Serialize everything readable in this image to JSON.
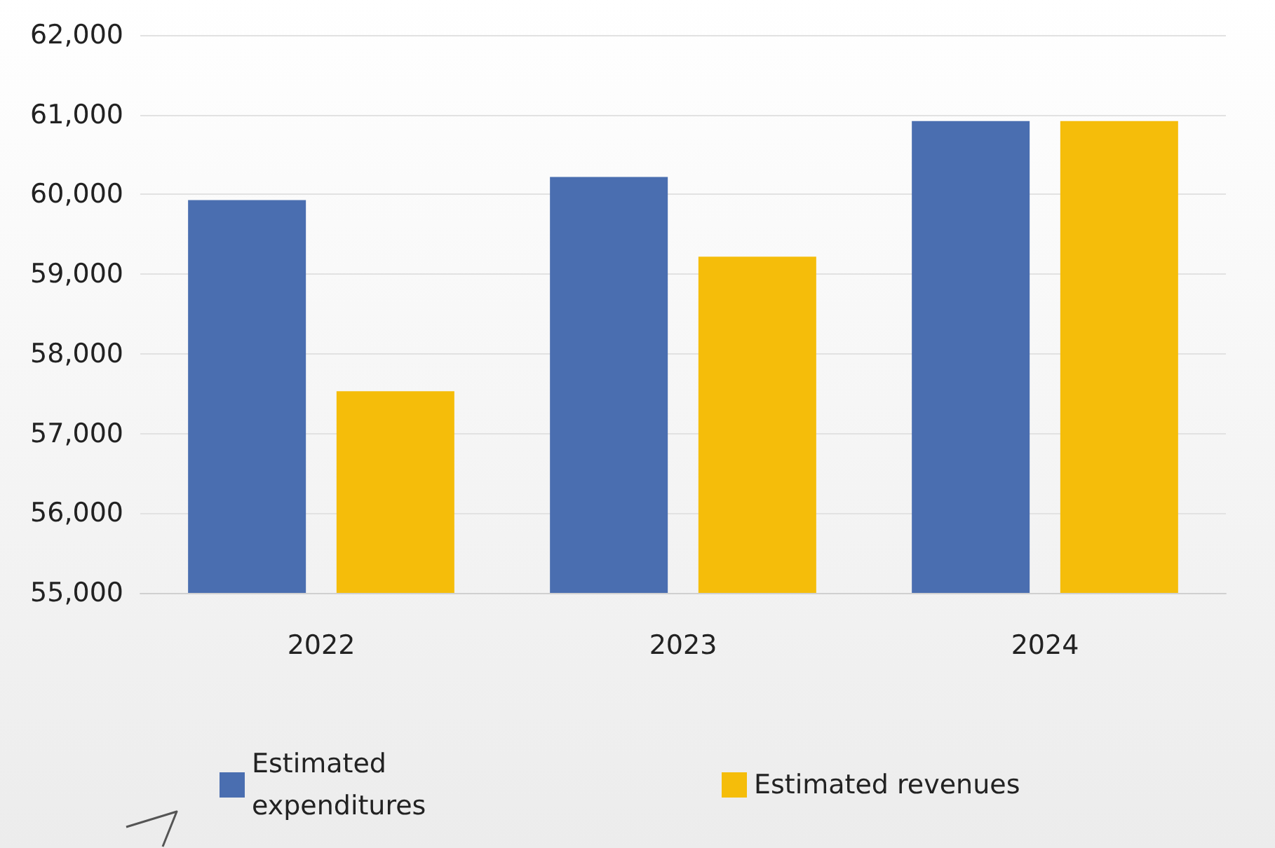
{
  "chart_data": {
    "type": "bar",
    "categories": [
      "2022",
      "2023",
      "2024"
    ],
    "series": [
      {
        "name": "Estimated expenditures",
        "color": "#4a6eb0",
        "values": [
          59930,
          60220,
          60920
        ]
      },
      {
        "name": "Estimated revenues",
        "color": "#f5bd0a",
        "values": [
          57530,
          59220,
          60920
        ]
      }
    ],
    "ylim": [
      55000,
      62000
    ],
    "yticks": [
      {
        "value": 55000,
        "label": "55,000"
      },
      {
        "value": 56000,
        "label": "56,000"
      },
      {
        "value": 57000,
        "label": "57,000"
      },
      {
        "value": 58000,
        "label": "58,000"
      },
      {
        "value": 59000,
        "label": "59,000"
      },
      {
        "value": 60000,
        "label": "60,000"
      },
      {
        "value": 61000,
        "label": "61,000"
      },
      {
        "value": 62000,
        "label": "62,000"
      }
    ],
    "grid": "y",
    "legend": "bottom"
  }
}
